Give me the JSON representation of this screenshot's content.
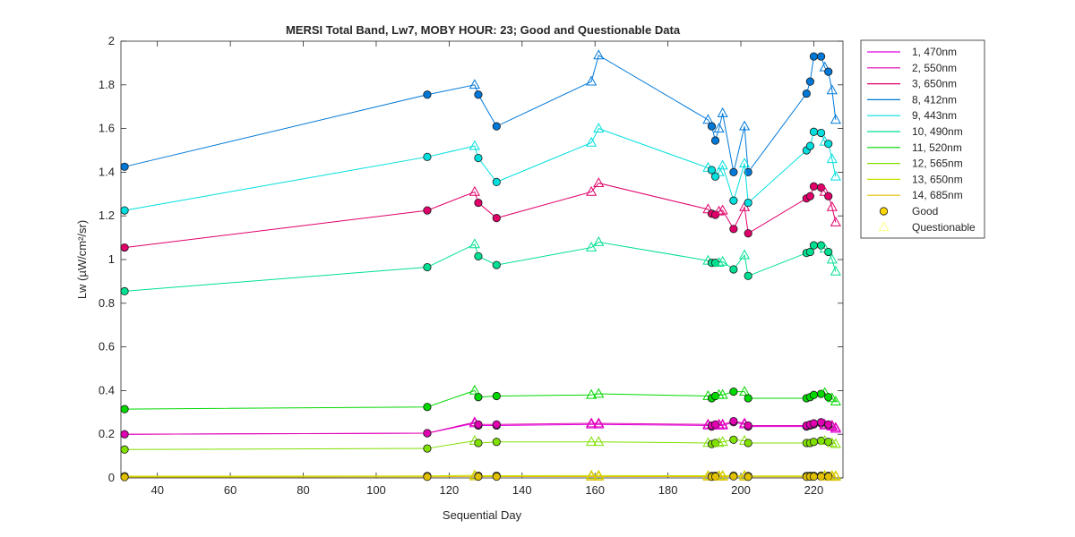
{
  "chart_data": {
    "type": "line",
    "title": "MERSI Total Band,  Lw7, MOBY HOUR: 23;  Good and Questionable Data",
    "xlabel": "Sequential Day",
    "ylabel": "Lw (µW/cm²/sr)",
    "xlim": [
      30,
      228
    ],
    "ylim": [
      0,
      2
    ],
    "xticks": [
      "40",
      "60",
      "80",
      "100",
      "120",
      "140",
      "160",
      "180",
      "200",
      "220"
    ],
    "yticks": [
      "0",
      "0.2",
      "0.4",
      "0.6",
      "0.8",
      "1",
      "1.2",
      "1.4",
      "1.6",
      "1.8",
      "2"
    ],
    "grid": false,
    "legend_position": "outside-right",
    "x": [
      31,
      114,
      127,
      128,
      133,
      159,
      161,
      191,
      192,
      193,
      194,
      195,
      198,
      201,
      202,
      218,
      219,
      220,
      222,
      223,
      224,
      225,
      226
    ],
    "quality": [
      "G",
      "G",
      "Q",
      "G",
      "G",
      "Q",
      "Q",
      "Q",
      "G",
      "G",
      "Q",
      "Q",
      "G",
      "Q",
      "G",
      "G",
      "G",
      "G",
      "G",
      "Q",
      "G",
      "Q",
      "Q"
    ],
    "series": [
      {
        "name": "1, 470nm",
        "color": "#e000e0",
        "values": [
          0.2,
          0.205,
          0.25,
          0.24,
          0.24,
          0.245,
          0.245,
          0.24,
          0.235,
          0.24,
          0.24,
          0.24,
          0.255,
          0.245,
          0.235,
          0.235,
          0.24,
          0.245,
          0.25,
          0.24,
          0.24,
          0.235,
          0.225
        ]
      },
      {
        "name": "2, 550nm",
        "color": "#e000b0",
        "values": [
          0.2,
          0.205,
          0.255,
          0.245,
          0.245,
          0.25,
          0.25,
          0.245,
          0.24,
          0.245,
          0.245,
          0.245,
          0.26,
          0.25,
          0.24,
          0.24,
          0.245,
          0.25,
          0.255,
          0.245,
          0.245,
          0.24,
          0.23
        ]
      },
      {
        "name": "3, 650nm",
        "color": "#e0006a",
        "values": [
          1.055,
          1.225,
          1.31,
          1.26,
          1.19,
          1.31,
          1.35,
          1.23,
          1.21,
          1.205,
          1.22,
          1.225,
          1.14,
          1.24,
          1.12,
          1.28,
          1.29,
          1.335,
          1.33,
          1.31,
          1.29,
          1.24,
          1.17
        ]
      },
      {
        "name": "8, 412nm",
        "color": "#0078d8",
        "values": [
          1.425,
          1.755,
          1.8,
          1.755,
          1.61,
          1.815,
          1.935,
          1.64,
          1.61,
          1.545,
          1.6,
          1.67,
          1.4,
          1.61,
          1.4,
          1.76,
          1.815,
          1.93,
          1.93,
          1.88,
          1.86,
          1.775,
          1.64
        ]
      },
      {
        "name": "9, 443nm",
        "color": "#00dede",
        "values": [
          1.225,
          1.47,
          1.52,
          1.465,
          1.355,
          1.535,
          1.6,
          1.42,
          1.41,
          1.38,
          1.4,
          1.43,
          1.27,
          1.44,
          1.26,
          1.5,
          1.52,
          1.585,
          1.58,
          1.54,
          1.53,
          1.46,
          1.38
        ]
      },
      {
        "name": "10, 490nm",
        "color": "#00e090",
        "values": [
          0.855,
          0.965,
          1.07,
          1.015,
          0.975,
          1.055,
          1.08,
          0.995,
          0.985,
          0.985,
          0.985,
          0.99,
          0.955,
          1.02,
          0.925,
          1.03,
          1.035,
          1.065,
          1.065,
          1.05,
          1.035,
          1.0,
          0.945
        ]
      },
      {
        "name": "11, 520nm",
        "color": "#00d800",
        "values": [
          0.315,
          0.325,
          0.4,
          0.37,
          0.375,
          0.38,
          0.385,
          0.375,
          0.365,
          0.375,
          0.38,
          0.38,
          0.395,
          0.395,
          0.365,
          0.365,
          0.37,
          0.38,
          0.385,
          0.39,
          0.37,
          0.365,
          0.35
        ]
      },
      {
        "name": "12, 565nm",
        "color": "#80e000",
        "values": [
          0.13,
          0.135,
          0.17,
          0.16,
          0.165,
          0.165,
          0.165,
          0.16,
          0.155,
          0.16,
          0.16,
          0.165,
          0.175,
          0.17,
          0.16,
          0.16,
          0.16,
          0.165,
          0.17,
          0.17,
          0.165,
          0.16,
          0.155
        ]
      },
      {
        "name": "13, 650nm",
        "color": "#c8e000",
        "values": [
          0.008,
          0.009,
          0.012,
          0.01,
          0.01,
          0.011,
          0.011,
          0.01,
          0.009,
          0.01,
          0.01,
          0.01,
          0.011,
          0.011,
          0.009,
          0.009,
          0.01,
          0.01,
          0.011,
          0.011,
          0.01,
          0.01,
          0.009
        ]
      },
      {
        "name": "14, 685nm",
        "color": "#e0c000",
        "values": [
          0.004,
          0.005,
          0.007,
          0.006,
          0.006,
          0.006,
          0.006,
          0.006,
          0.005,
          0.006,
          0.006,
          0.006,
          0.007,
          0.006,
          0.005,
          0.005,
          0.006,
          0.006,
          0.006,
          0.006,
          0.006,
          0.005,
          0.005
        ]
      }
    ],
    "marker_legend": [
      {
        "name": "Good",
        "marker": "circle",
        "color": "#ffd700"
      },
      {
        "name": "Questionable",
        "marker": "triangle",
        "color": "#ffff80"
      }
    ]
  }
}
